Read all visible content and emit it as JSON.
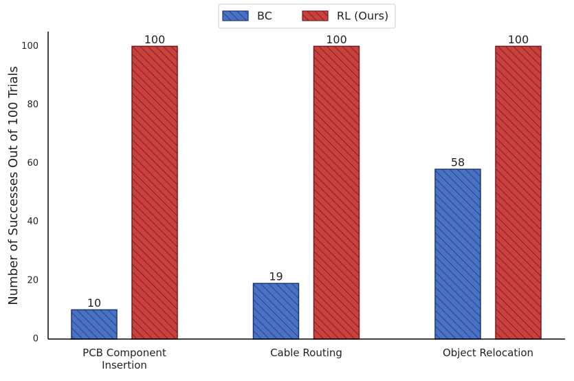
{
  "chart_data": {
    "type": "bar",
    "y_label": "Number of Successes Out of 100 Trials",
    "categories": [
      "PCB Component Insertion",
      "Cable Routing",
      "Object Relocation"
    ],
    "series": [
      {
        "name": "BC",
        "color": "#4a72c4",
        "values": [
          10,
          19,
          58
        ]
      },
      {
        "name": "RL (Ours)",
        "color": "#c9413f",
        "values": [
          100,
          100,
          100
        ]
      }
    ],
    "ylim": [
      0,
      105
    ],
    "yticks": [
      0,
      20,
      40,
      60,
      80,
      100
    ],
    "grid": false,
    "legend": "top"
  }
}
